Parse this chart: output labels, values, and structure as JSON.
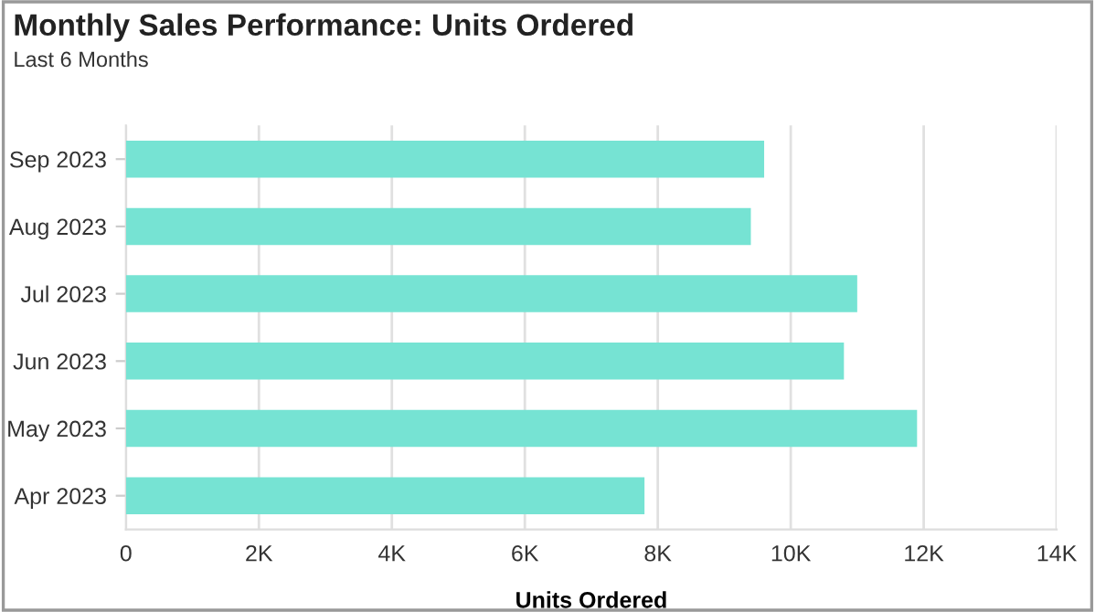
{
  "chart_data": {
    "type": "bar",
    "orientation": "horizontal",
    "title": "Monthly Sales Performance: Units Ordered",
    "subtitle": "Last 6 Months",
    "xlabel": "Units Ordered",
    "categories": [
      "Sep 2023",
      "Aug 2023",
      "Jul 2023",
      "Jun 2023",
      "May 2023",
      "Apr 2023"
    ],
    "values": [
      9600,
      9400,
      11000,
      10800,
      11900,
      7800
    ],
    "color": "#76e3d3",
    "xlim": [
      0,
      14000
    ],
    "xticks": [
      {
        "value": 0,
        "label": "0"
      },
      {
        "value": 2000,
        "label": "2K"
      },
      {
        "value": 4000,
        "label": "4K"
      },
      {
        "value": 6000,
        "label": "6K"
      },
      {
        "value": 8000,
        "label": "8K"
      },
      {
        "value": 10000,
        "label": "10K"
      },
      {
        "value": 12000,
        "label": "12K"
      },
      {
        "value": 14000,
        "label": "14K"
      }
    ],
    "grid": "x",
    "legend": false
  }
}
